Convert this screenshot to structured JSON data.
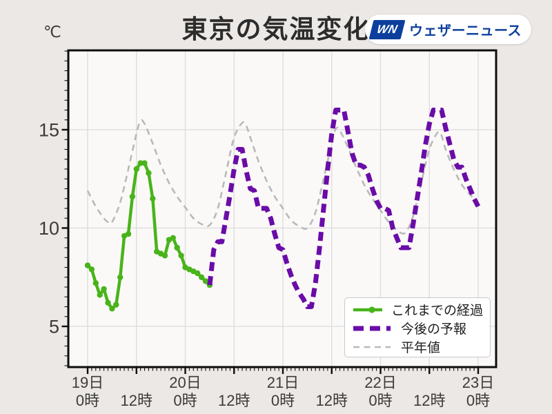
{
  "colors": {
    "past": "#48b41a",
    "forecast": "#6a0ca8",
    "normal": "#b9b9b9",
    "logo_blue": "#0c3f9d",
    "title": "#2c2c2c",
    "axis_text": "#3b3b3b",
    "grid": "#dcdada",
    "spine": "#0d0d0d",
    "plot_bg": "#fbf9f8",
    "page_bg": "#ece8e5"
  },
  "logo": {
    "mark": "WN",
    "text": "ウェザーニュース"
  },
  "chart_data": {
    "type": "line",
    "title": "東京の気温変化",
    "y_unit": "℃",
    "x_range_hours": [
      0,
      96
    ],
    "x_tick_interval_hours": 12,
    "ylim": [
      2.9,
      19.0
    ],
    "grid": true,
    "legend_position": "lower-right",
    "x_ticks": [
      {
        "day": "19日",
        "time": "0時"
      },
      {
        "day": "",
        "time": "12時"
      },
      {
        "day": "20日",
        "time": "0時"
      },
      {
        "day": "",
        "time": "12時"
      },
      {
        "day": "21日",
        "time": "0時"
      },
      {
        "day": "",
        "time": "12時"
      },
      {
        "day": "22日",
        "time": "0時"
      },
      {
        "day": "",
        "time": "12時"
      },
      {
        "day": "23日",
        "time": "0時"
      }
    ],
    "y_ticks": [
      5,
      10,
      15
    ],
    "series": [
      {
        "name": "これまでの経過",
        "style": "solid-with-markers",
        "color_key": "past",
        "start_hour": 0,
        "step_hours": 1,
        "values": [
          8.1,
          7.9,
          7.2,
          6.6,
          6.9,
          6.2,
          5.9,
          6.1,
          7.5,
          9.6,
          9.7,
          11.6,
          13.0,
          13.3,
          13.3,
          12.8,
          11.5,
          8.8,
          8.7,
          8.6,
          9.4,
          9.5,
          9.0,
          8.6,
          8.0,
          7.9,
          7.8,
          7.7,
          7.5,
          7.3,
          7.1
        ]
      },
      {
        "name": "今後の予報",
        "style": "thick-dashed",
        "color_key": "forecast",
        "start_hour": 30,
        "step_hours": 1,
        "values": [
          7.1,
          8.9,
          9.3,
          9.3,
          10.5,
          11.7,
          13.0,
          14.0,
          14.0,
          12.9,
          12.0,
          11.9,
          11.0,
          11.0,
          11.0,
          10.5,
          9.7,
          9.0,
          8.9,
          8.2,
          7.6,
          7.1,
          6.7,
          6.4,
          6.0,
          6.0,
          7.2,
          9.0,
          11.0,
          13.0,
          14.8,
          16.0,
          16.0,
          16.0,
          14.9,
          13.8,
          13.2,
          13.2,
          13.1,
          12.7,
          12.0,
          11.4,
          11.0,
          11.0,
          10.9,
          10.0,
          9.5,
          9.0,
          9.0,
          9.0,
          10.2,
          11.5,
          12.8,
          14.2,
          15.3,
          16.0,
          16.0,
          16.0,
          15.1,
          14.3,
          13.5,
          13.1,
          13.1,
          12.5,
          12.0,
          11.5,
          11.1
        ]
      },
      {
        "name": "平年値",
        "style": "thin-dashed",
        "color_key": "normal",
        "points": [
          [
            0,
            11.9
          ],
          [
            2,
            11.1
          ],
          [
            4,
            10.5
          ],
          [
            5,
            10.3
          ],
          [
            6,
            10.3
          ],
          [
            8,
            11.3
          ],
          [
            10,
            13.0
          ],
          [
            12,
            14.8
          ],
          [
            13,
            15.45
          ],
          [
            14,
            15.3
          ],
          [
            16,
            14.3
          ],
          [
            18,
            13.2
          ],
          [
            20,
            12.3
          ],
          [
            22,
            11.6
          ],
          [
            24,
            11.05
          ],
          [
            26,
            10.5
          ],
          [
            28,
            10.2
          ],
          [
            30,
            10.15
          ],
          [
            32,
            11.0
          ],
          [
            34,
            12.8
          ],
          [
            36,
            14.6
          ],
          [
            38,
            15.35
          ],
          [
            39,
            15.2
          ],
          [
            40,
            14.6
          ],
          [
            42,
            13.4
          ],
          [
            44,
            12.4
          ],
          [
            46,
            11.6
          ],
          [
            48,
            11.0
          ],
          [
            50,
            10.4
          ],
          [
            52,
            10.1
          ],
          [
            54,
            10.0
          ],
          [
            56,
            10.8
          ],
          [
            58,
            12.5
          ],
          [
            60,
            14.3
          ],
          [
            61,
            15.05
          ],
          [
            62,
            14.95
          ],
          [
            64,
            14.1
          ],
          [
            66,
            13.1
          ],
          [
            68,
            12.2
          ],
          [
            70,
            11.5
          ],
          [
            72,
            10.9
          ],
          [
            74,
            10.3
          ],
          [
            76,
            9.9
          ],
          [
            78,
            9.75
          ],
          [
            80,
            10.6
          ],
          [
            82,
            12.3
          ],
          [
            84,
            14.0
          ],
          [
            86,
            14.85
          ],
          [
            87,
            14.7
          ],
          [
            88,
            14.0
          ],
          [
            90,
            13.0
          ],
          [
            92,
            12.2
          ],
          [
            94,
            11.7
          ],
          [
            96,
            11.3
          ]
        ]
      }
    ]
  }
}
